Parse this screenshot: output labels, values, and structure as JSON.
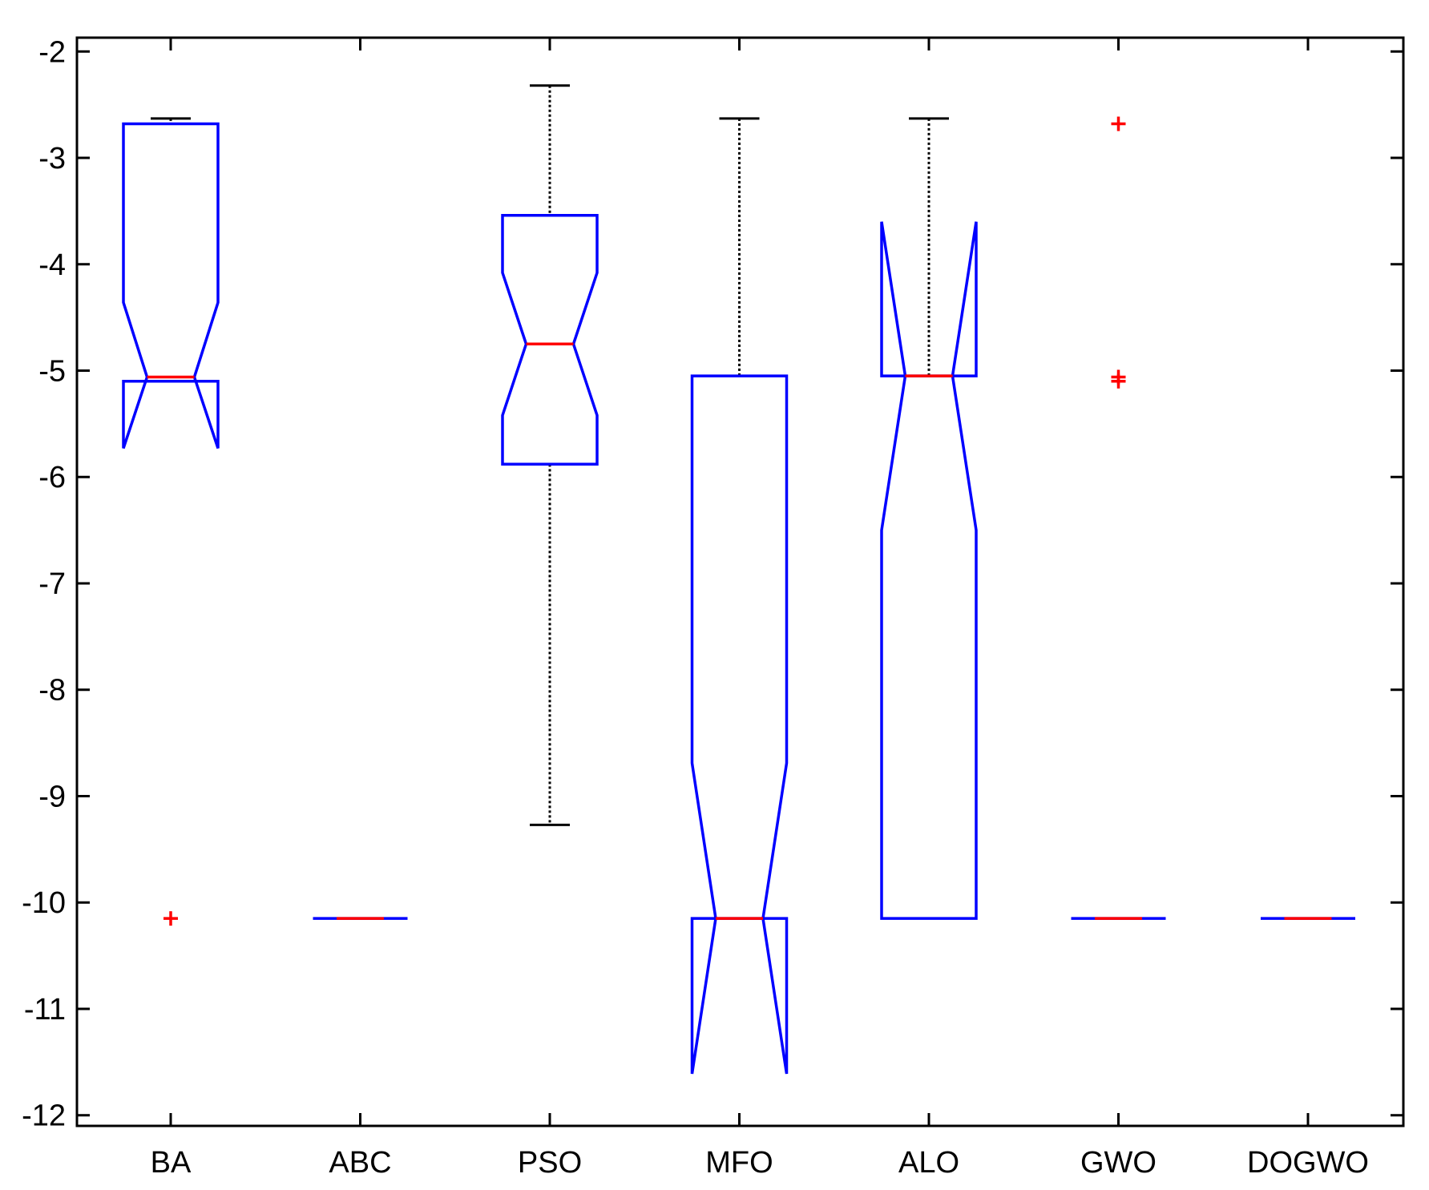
{
  "chart_data": {
    "type": "boxplot",
    "notched": true,
    "categories": [
      "BA",
      "ABC",
      "PSO",
      "MFO",
      "ALO",
      "GWO",
      "DOGWO"
    ],
    "ylim": [
      -12.1,
      -1.87
    ],
    "yticks": [
      -2,
      -3,
      -4,
      -5,
      -6,
      -7,
      -8,
      -9,
      -10,
      -11,
      -12
    ],
    "ytick_labels": [
      "-2",
      "-3",
      "-4",
      "-5",
      "-6",
      "-7",
      "-8",
      "-9",
      "-10",
      "-11",
      "-12"
    ],
    "boxes": [
      {
        "name": "BA",
        "q1": -5.1,
        "median": -5.06,
        "q3": -2.68,
        "whisker_low": -5.1,
        "whisker_high": -2.63,
        "notch_low": -5.73,
        "notch_high": -4.36,
        "outliers": [
          -10.15
        ]
      },
      {
        "name": "ABC",
        "q1": -10.15,
        "median": -10.15,
        "q3": -10.15,
        "whisker_low": -10.15,
        "whisker_high": -10.15,
        "notch_low": -10.15,
        "notch_high": -10.15,
        "outliers": []
      },
      {
        "name": "PSO",
        "q1": -5.88,
        "median": -4.75,
        "q3": -3.54,
        "whisker_low": -9.27,
        "whisker_high": -2.32,
        "notch_low": -5.42,
        "notch_high": -4.08,
        "outliers": []
      },
      {
        "name": "MFO",
        "q1": -10.15,
        "median": -10.15,
        "q3": -5.05,
        "whisker_low": -10.15,
        "whisker_high": -2.63,
        "notch_low": -11.61,
        "notch_high": -8.69,
        "outliers": []
      },
      {
        "name": "ALO",
        "q1": -10.15,
        "median": -5.05,
        "q3": -5.05,
        "whisker_low": -10.15,
        "whisker_high": -2.63,
        "notch_low": -6.5,
        "notch_high": -3.6,
        "outliers": []
      },
      {
        "name": "GWO",
        "q1": -10.15,
        "median": -10.15,
        "q3": -10.15,
        "whisker_low": -10.15,
        "whisker_high": -10.15,
        "notch_low": -10.15,
        "notch_high": -10.15,
        "outliers": [
          -2.68,
          -5.06,
          -5.1
        ]
      },
      {
        "name": "DOGWO",
        "q1": -10.15,
        "median": -10.15,
        "q3": -10.15,
        "whisker_low": -10.15,
        "whisker_high": -10.15,
        "notch_low": -10.15,
        "notch_high": -10.15,
        "outliers": []
      }
    ],
    "colors": {
      "box": "#0000ff",
      "median": "#ff0000",
      "whisker": "#000000",
      "outlier": "#ff0000",
      "axes": "#000000"
    },
    "grid": false,
    "legend": "none"
  }
}
